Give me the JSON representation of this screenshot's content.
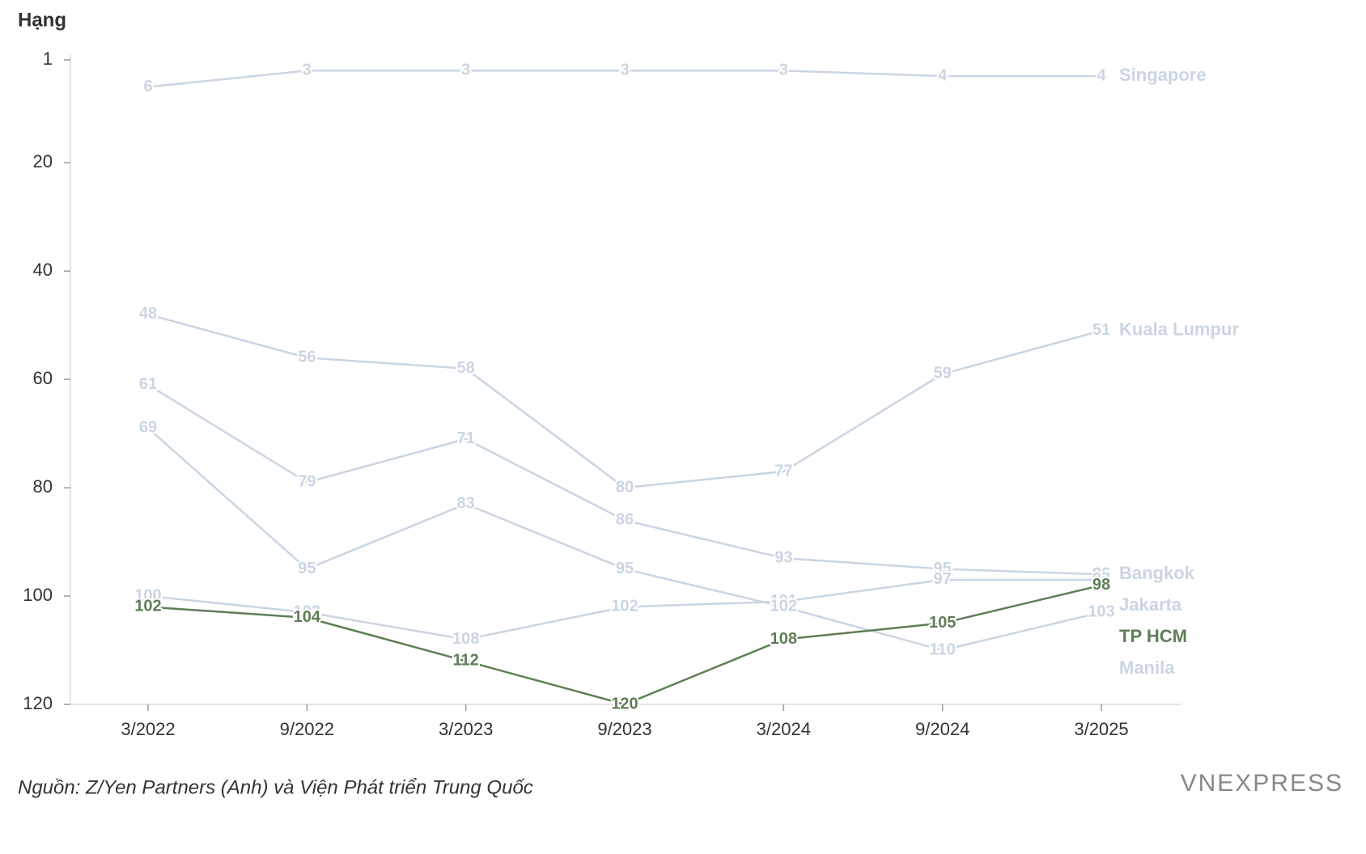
{
  "chart_data": {
    "type": "line",
    "y_label": "Hạng",
    "categories": [
      "3/2022",
      "9/2022",
      "3/2023",
      "9/2023",
      "3/2024",
      "9/2024",
      "3/2025"
    ],
    "ylim": [
      1,
      120
    ],
    "yticks": [
      1,
      20,
      40,
      60,
      80,
      100,
      120
    ],
    "y_reversed": true,
    "series": [
      {
        "name": "Singapore",
        "color": "#cad5e3",
        "values": [
          6,
          3,
          3,
          3,
          3,
          4,
          4
        ]
      },
      {
        "name": "Kuala Lumpur",
        "color": "#cad5e3",
        "values": [
          48,
          56,
          58,
          80,
          77,
          59,
          51
        ]
      },
      {
        "name": "Bangkok",
        "color": "#cad5e3",
        "values": [
          61,
          79,
          71,
          86,
          93,
          95,
          96
        ]
      },
      {
        "name": "Jakarta",
        "color": "#cad5e3",
        "values": [
          100,
          103,
          108,
          102,
          101,
          97,
          97
        ]
      },
      {
        "name": "Manila",
        "color": "#cad5e3",
        "values": [
          69,
          95,
          83,
          95,
          102,
          110,
          103
        ]
      },
      {
        "name": "TP HCM",
        "color": "#5e7e57",
        "values": [
          102,
          104,
          112,
          120,
          108,
          105,
          98
        ]
      }
    ],
    "source": "Nguồn: Z/Yen Partners (Anh) và Viện Phát triển Trung Quốc",
    "logo": "VNEXPRESS"
  }
}
